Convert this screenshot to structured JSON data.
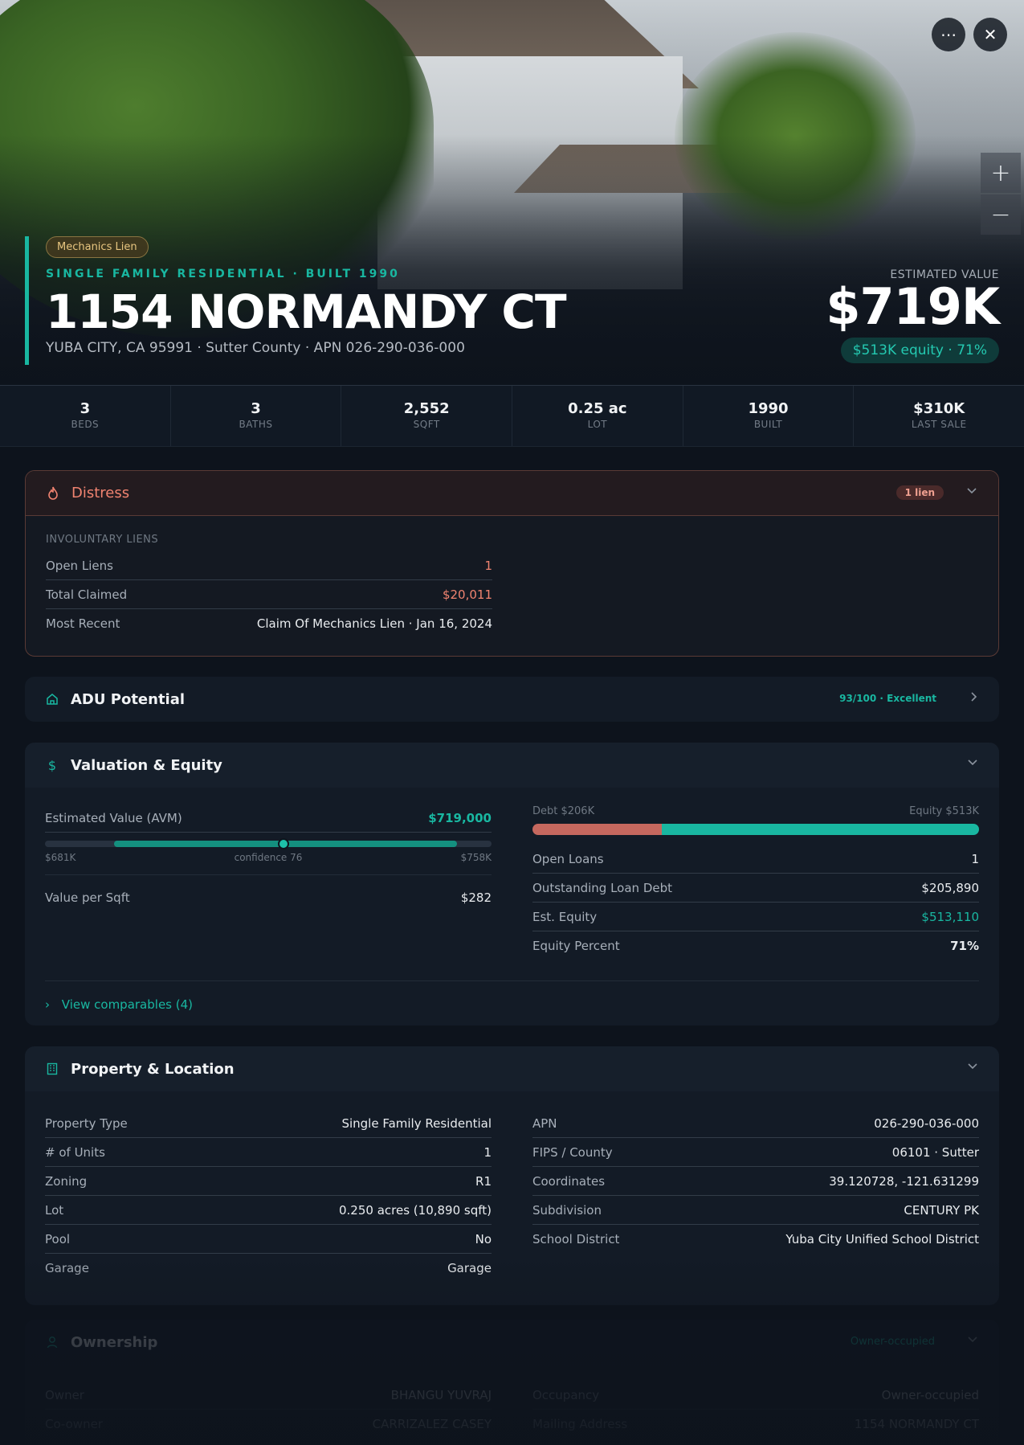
{
  "hero": {
    "badge": "Mechanics Lien",
    "eyebrow": "SINGLE FAMILY RESIDENTIAL · BUILT 1990",
    "address": "1154 NORMANDY CT",
    "subaddress": "YUBA CITY, CA 95991 · Sutter County · APN 026-290-036-000",
    "estimated_label": "ESTIMATED VALUE",
    "estimated_value": "$719K",
    "equity_pill": "$513K equity · 71%",
    "more_icon": "ellipsis-icon",
    "close_icon": "close-icon",
    "zoom_in": "+",
    "zoom_out": "−"
  },
  "stats": [
    {
      "value": "3",
      "label": "BEDS"
    },
    {
      "value": "3",
      "label": "BATHS"
    },
    {
      "value": "2,552",
      "label": "SQFT"
    },
    {
      "value": "0.25 ac",
      "label": "LOT"
    },
    {
      "value": "1990",
      "label": "BUILT"
    },
    {
      "value": "$310K",
      "label": "LAST SALE"
    }
  ],
  "distress": {
    "title": "Distress",
    "count": "1 lien",
    "section": "INVOLUNTARY LIENS",
    "rows": [
      {
        "k": "Open Liens",
        "v": "1"
      },
      {
        "k": "Total Claimed",
        "v": "$20,011"
      },
      {
        "k": "Most Recent",
        "v": "Claim Of Mechanics Lien · Jan 16, 2024"
      }
    ],
    "accent": "#f08370"
  },
  "adu": {
    "title": "ADU Potential",
    "score": "93/100 · Excellent"
  },
  "valuation": {
    "title": "Valuation & Equity",
    "avm_label": "Estimated Value (AVM)",
    "avm_value": "$719,000",
    "range_low": "$681K",
    "range_mid": "confidence 76",
    "range_high": "$758K",
    "range_low_value": 681000,
    "range_high_value": 758000,
    "estimate_value": 719000,
    "psf_label": "Value per Sqft",
    "psf_value": "$282",
    "debt_label": "Debt $206K",
    "equity_label": "Equity $513K",
    "debt_fraction": 0.29,
    "rows": [
      {
        "k": "Open Loans",
        "v": "1"
      },
      {
        "k": "Outstanding Loan Debt",
        "v": "$205,890"
      },
      {
        "k": "Est. Equity",
        "v": "$513,110"
      },
      {
        "k": "Equity Percent",
        "v": "71%"
      }
    ],
    "comparables": "View comparables (4)"
  },
  "property": {
    "title": "Property & Location",
    "left": [
      {
        "k": "Property Type",
        "v": "Single Family Residential"
      },
      {
        "k": "# of Units",
        "v": "1"
      },
      {
        "k": "Zoning",
        "v": "R1"
      },
      {
        "k": "Lot",
        "v": "0.250 acres (10,890 sqft)"
      },
      {
        "k": "Pool",
        "v": "No"
      },
      {
        "k": "Garage",
        "v": "Garage"
      }
    ],
    "right": [
      {
        "k": "APN",
        "v": "026-290-036-000"
      },
      {
        "k": "FIPS / County",
        "v": "06101 · Sutter"
      },
      {
        "k": "Coordinates",
        "v": "39.120728, -121.631299"
      },
      {
        "k": "Subdivision",
        "v": "CENTURY PK"
      },
      {
        "k": "School District",
        "v": "Yuba City Unified School District"
      }
    ]
  },
  "ownership": {
    "title": "Ownership",
    "status": "Owner-occupied",
    "left": [
      {
        "k": "Owner",
        "v": "BHANGU YUVRAJ"
      },
      {
        "k": "Co-owner",
        "v": "CARRIZALEZ CASEY"
      }
    ],
    "right": [
      {
        "k": "Occupancy",
        "v": "Owner-occupied"
      },
      {
        "k": "Mailing Address",
        "v": "1154 NORMANDY CT"
      }
    ]
  }
}
